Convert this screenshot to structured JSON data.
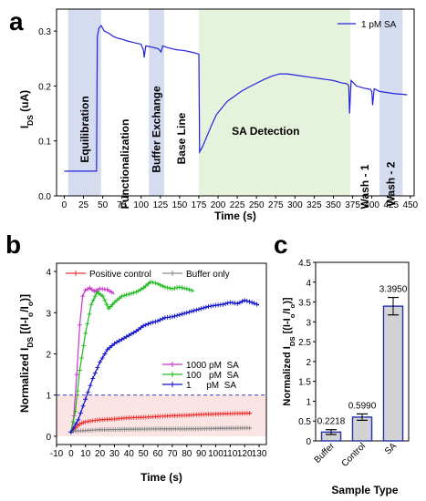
{
  "panels": [
    {
      "letter": "a",
      "chart_data": {
        "type": "line",
        "series": [
          {
            "name": "1 pM  SA",
            "color": "#2222dd",
            "points": [
              [
                0,
                0.045
              ],
              [
                42,
                0.045
              ],
              [
                43,
                0.29
              ],
              [
                45,
                0.305
              ],
              [
                48,
                0.31
              ],
              [
                52,
                0.3
              ],
              [
                58,
                0.296
              ],
              [
                64,
                0.29
              ],
              [
                70,
                0.287
              ],
              [
                76,
                0.285
              ],
              [
                82,
                0.282
              ],
              [
                88,
                0.28
              ],
              [
                94,
                0.278
              ],
              [
                100,
                0.276
              ],
              [
                103,
                0.265
              ],
              [
                104,
                0.252
              ],
              [
                106,
                0.273
              ],
              [
                110,
                0.272
              ],
              [
                116,
                0.27
              ],
              [
                122,
                0.268
              ],
              [
                126,
                0.262
              ],
              [
                128,
                0.273
              ],
              [
                134,
                0.27
              ],
              [
                140,
                0.268
              ],
              [
                146,
                0.266
              ],
              [
                152,
                0.265
              ],
              [
                158,
                0.264
              ],
              [
                164,
                0.262
              ],
              [
                170,
                0.26
              ],
              [
                175,
                0.258
              ],
              [
                176,
                0.08
              ],
              [
                180,
                0.09
              ],
              [
                186,
                0.11
              ],
              [
                192,
                0.13
              ],
              [
                198,
                0.148
              ],
              [
                205,
                0.16
              ],
              [
                212,
                0.172
              ],
              [
                220,
                0.18
              ],
              [
                230,
                0.19
              ],
              [
                240,
                0.198
              ],
              [
                250,
                0.205
              ],
              [
                260,
                0.212
              ],
              [
                270,
                0.218
              ],
              [
                280,
                0.222
              ],
              [
                290,
                0.222
              ],
              [
                300,
                0.22
              ],
              [
                310,
                0.218
              ],
              [
                320,
                0.216
              ],
              [
                330,
                0.214
              ],
              [
                340,
                0.212
              ],
              [
                350,
                0.21
              ],
              [
                360,
                0.206
              ],
              [
                368,
                0.204
              ],
              [
                370,
                0.2
              ],
              [
                371,
                0.15
              ],
              [
                373,
                0.21
              ],
              [
                380,
                0.2
              ],
              [
                390,
                0.196
              ],
              [
                398,
                0.194
              ],
              [
                400,
                0.19
              ],
              [
                401,
                0.165
              ],
              [
                403,
                0.195
              ],
              [
                410,
                0.19
              ],
              [
                420,
                0.188
              ],
              [
                430,
                0.186
              ],
              [
                440,
                0.185
              ],
              [
                446,
                0.184
              ]
            ]
          }
        ],
        "xlabel": "Time (s)",
        "ylabel": "I_DS (uA)",
        "xlim": [
          -10,
          455
        ],
        "ylim": [
          0,
          0.34
        ],
        "xticks": [
          0,
          25,
          50,
          75,
          100,
          125,
          150,
          175,
          200,
          225,
          250,
          275,
          300,
          325,
          350,
          375,
          400,
          425,
          450
        ],
        "yticks": [
          0.0,
          0.1,
          0.2,
          0.3
        ],
        "regions": [
          {
            "label": "Equilibration",
            "x0": 5,
            "x1": 48,
            "fill": "#d5dcef",
            "text_color": "#000000"
          },
          {
            "label": "Functionalization",
            "x0": 48,
            "x1": 110,
            "fill": "#ffffff",
            "text_color": "#2aa82a"
          },
          {
            "label": "Buffer Exchange",
            "x0": 110,
            "x1": 130,
            "fill": "#d5dcef",
            "text_color": "#2255aa"
          },
          {
            "label": "Base Line",
            "x0": 130,
            "x1": 175,
            "fill": "#ffffff",
            "text_color": "#2255aa"
          },
          {
            "label": "SA Detection",
            "x0": 175,
            "x1": 372,
            "fill": "#e6f3dc",
            "text_color": "#2aa82a"
          },
          {
            "label": "Wash - 1",
            "x0": 372,
            "x1": 410,
            "fill": "#ffffff",
            "text_color": "#2255aa"
          },
          {
            "label": "Wash - 2",
            "x0": 410,
            "x1": 440,
            "fill": "#d5dcef",
            "text_color": "#2255aa"
          }
        ],
        "legend_position": "top-right"
      }
    },
    {
      "letter": "b",
      "chart_data": {
        "type": "line",
        "series": [
          {
            "name": "Positive control",
            "color": "#ee3333",
            "points": [
              [
                0,
                0.1
              ],
              [
                3,
                0.2
              ],
              [
                6,
                0.3
              ],
              [
                10,
                0.35
              ],
              [
                15,
                0.38
              ],
              [
                20,
                0.4
              ],
              [
                30,
                0.42
              ],
              [
                40,
                0.45
              ],
              [
                50,
                0.46
              ],
              [
                60,
                0.48
              ],
              [
                70,
                0.5
              ],
              [
                80,
                0.51
              ],
              [
                90,
                0.53
              ],
              [
                100,
                0.54
              ],
              [
                110,
                0.55
              ],
              [
                120,
                0.56
              ],
              [
                125,
                0.56
              ]
            ]
          },
          {
            "name": "Buffer only",
            "color": "#888888",
            "points": [
              [
                0,
                0.12
              ],
              [
                10,
                0.14
              ],
              [
                20,
                0.16
              ],
              [
                40,
                0.17
              ],
              [
                60,
                0.18
              ],
              [
                80,
                0.18
              ],
              [
                100,
                0.19
              ],
              [
                120,
                0.2
              ],
              [
                125,
                0.2
              ]
            ]
          },
          {
            "name": "1000 pM  SA",
            "color": "#cc33cc",
            "points": [
              [
                0,
                0.1
              ],
              [
                2,
                0.5
              ],
              [
                4,
                1.5
              ],
              [
                6,
                2.7
              ],
              [
                8,
                3.4
              ],
              [
                10,
                3.55
              ],
              [
                13,
                3.6
              ],
              [
                16,
                3.52
              ],
              [
                20,
                3.58
              ],
              [
                25,
                3.56
              ],
              [
                28,
                3.5
              ],
              [
                30,
                3.45
              ]
            ]
          },
          {
            "name": "100   pM  SA",
            "color": "#22bb22",
            "points": [
              [
                0,
                0.1
              ],
              [
                3,
                0.6
              ],
              [
                6,
                1.6
              ],
              [
                10,
                2.5
              ],
              [
                14,
                3.2
              ],
              [
                18,
                3.5
              ],
              [
                22,
                3.4
              ],
              [
                26,
                3.1
              ],
              [
                30,
                3.25
              ],
              [
                35,
                3.4
              ],
              [
                40,
                3.45
              ],
              [
                45,
                3.5
              ],
              [
                50,
                3.6
              ],
              [
                55,
                3.75
              ],
              [
                60,
                3.7
              ],
              [
                65,
                3.62
              ],
              [
                70,
                3.58
              ],
              [
                75,
                3.62
              ],
              [
                80,
                3.58
              ],
              [
                85,
                3.52
              ]
            ]
          },
          {
            "name": "1      pM  SA",
            "color": "#1111cc",
            "points": [
              [
                0,
                0.1
              ],
              [
                5,
                0.4
              ],
              [
                10,
                0.9
              ],
              [
                15,
                1.4
              ],
              [
                20,
                1.8
              ],
              [
                25,
                2.1
              ],
              [
                30,
                2.25
              ],
              [
                35,
                2.35
              ],
              [
                40,
                2.45
              ],
              [
                45,
                2.55
              ],
              [
                50,
                2.68
              ],
              [
                55,
                2.75
              ],
              [
                60,
                2.8
              ],
              [
                65,
                2.88
              ],
              [
                70,
                2.9
              ],
              [
                75,
                2.95
              ],
              [
                80,
                3.0
              ],
              [
                85,
                3.05
              ],
              [
                90,
                3.1
              ],
              [
                95,
                3.15
              ],
              [
                100,
                3.18
              ],
              [
                105,
                3.2
              ],
              [
                110,
                3.25
              ],
              [
                115,
                3.22
              ],
              [
                120,
                3.3
              ],
              [
                125,
                3.25
              ],
              [
                130,
                3.18
              ]
            ]
          }
        ],
        "xlabel": "Time (s)",
        "ylabel": "Normalized I_DS [(I-I_o/I_o)]",
        "xlim": [
          -10,
          135
        ],
        "ylim": [
          -0.2,
          4.2
        ],
        "xticks": [
          -10,
          0,
          10,
          20,
          30,
          40,
          50,
          60,
          70,
          80,
          90,
          100,
          110,
          120,
          130
        ],
        "yticks": [
          0,
          1,
          2,
          3,
          4
        ],
        "reference_line": {
          "y": 1,
          "color": "#3344cc"
        },
        "shaded_region": {
          "y0": 0,
          "y1": 1,
          "fill": "#fbe4e4"
        }
      }
    },
    {
      "letter": "c",
      "chart_data": {
        "type": "bar",
        "categories": [
          "Buffer",
          "Control",
          "SA"
        ],
        "values": [
          0.2218,
          0.599,
          3.395
        ],
        "errors": [
          0.06,
          0.08,
          0.22
        ],
        "value_labels": [
          "0.2218",
          "0.5990",
          "3.3950"
        ],
        "bar_fill": "#d3d3d3",
        "bar_stroke": "#2233aa",
        "label_color": "#2233aa",
        "xlabel": "Sample Type",
        "ylabel": "Normalized I_DS [(I-I_o/I_o)]",
        "ylim": [
          0,
          4.5
        ],
        "yticks": [
          0,
          0.5,
          1,
          1.5,
          2,
          2.5,
          3,
          3.5,
          4,
          4.5
        ]
      }
    }
  ]
}
